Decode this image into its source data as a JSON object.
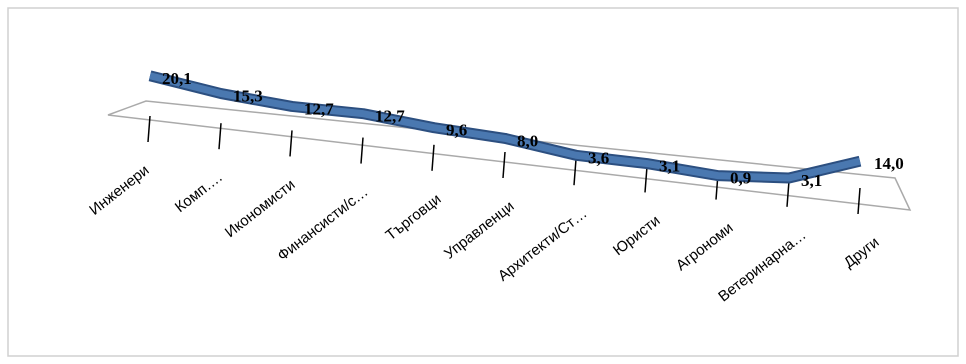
{
  "chart_data": {
    "type": "line",
    "categories": [
      "Инженери",
      "Комп….",
      "Икономисти",
      "Финансисти/с…",
      "Търговци",
      "Управленци",
      "Архитекти/Ст…",
      "Юристи",
      "Агрономи",
      "Ветеринарна…",
      "Други"
    ],
    "values": [
      20.1,
      15.3,
      12.7,
      12.7,
      9.6,
      8.0,
      3.6,
      3.1,
      0.9,
      3.1,
      14.0
    ],
    "value_labels": [
      "20,1",
      "15,3",
      "12,7",
      "12,7",
      "9,6",
      "8,0",
      "3,6",
      "3,1",
      "0,9",
      "3,1",
      "14,0"
    ],
    "color": "#4a78b0"
  }
}
